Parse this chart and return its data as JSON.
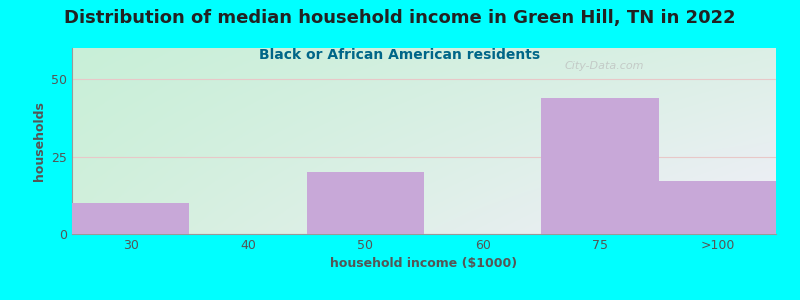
{
  "title": "Distribution of median household income in Green Hill, TN in 2022",
  "subtitle": "Black or African American residents",
  "xlabel": "household income ($1000)",
  "ylabel": "households",
  "background_color": "#00FFFF",
  "plot_bg_top_left": "#c8f0d8",
  "plot_bg_bottom_right": "#f0eef8",
  "bar_color": "#C8A8D8",
  "categories": [
    "30",
    "40",
    "50",
    "60",
    "75",
    ">100"
  ],
  "values": [
    10,
    0,
    20,
    0,
    44,
    17
  ],
  "ylim": [
    0,
    60
  ],
  "yticks": [
    0,
    25,
    50
  ],
  "grid_color": "#e8c8c8",
  "title_fontsize": 13,
  "subtitle_fontsize": 10,
  "axis_label_fontsize": 9,
  "tick_fontsize": 9,
  "title_color": "#222222",
  "subtitle_color": "#006688",
  "axis_label_color": "#555555",
  "tick_color": "#555555",
  "watermark": "City-Data.com"
}
